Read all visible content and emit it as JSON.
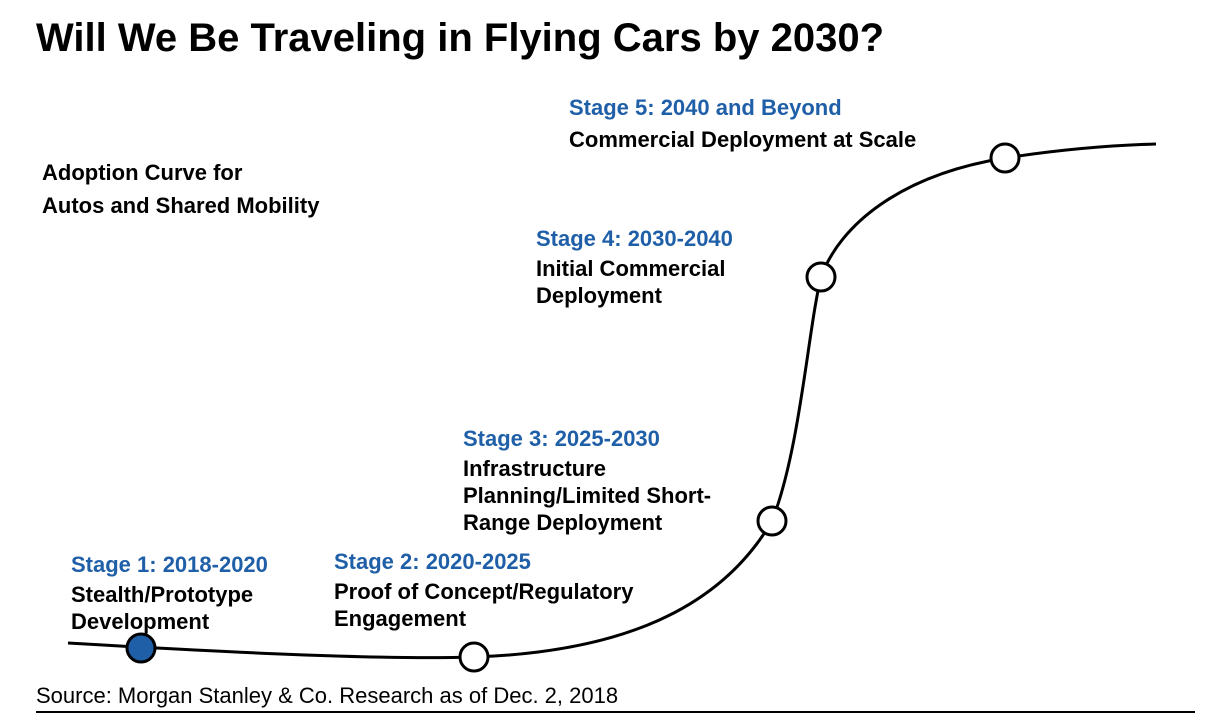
{
  "title": "Will We Be Traveling in Flying Cars by 2030?",
  "subtitle_lines": [
    "Adoption Curve for",
    "Autos and Shared Mobility"
  ],
  "colors": {
    "stage_heading": "#1f5fa8",
    "text": "#000000",
    "curve": "#000000",
    "active_marker_fill": "#1f5fa8",
    "inactive_marker_fill": "#ffffff"
  },
  "stages": [
    {
      "heading": "Stage 1: 2018-2020",
      "description_lines": [
        "Stealth/Prototype",
        "Development"
      ],
      "marker": "filled-circle"
    },
    {
      "heading": "Stage 2: 2020-2025",
      "description_lines": [
        "Proof of Concept/Regulatory",
        "Engagement"
      ],
      "marker": "open-circle"
    },
    {
      "heading": "Stage 3: 2025-2030",
      "description_lines": [
        "Infrastructure",
        "Planning/Limited Short-",
        "Range Deployment"
      ],
      "marker": "open-circle"
    },
    {
      "heading": "Stage 4: 2030-2040",
      "description_lines": [
        "Initial Commercial",
        "Deployment"
      ],
      "marker": "open-circle"
    },
    {
      "heading": "Stage 5: 2040 and Beyond",
      "description_lines": [
        "Commercial Deployment at Scale"
      ],
      "marker": "open-circle"
    }
  ],
  "source": "Source: Morgan Stanley & Co. Research as of Dec. 2, 2018"
}
